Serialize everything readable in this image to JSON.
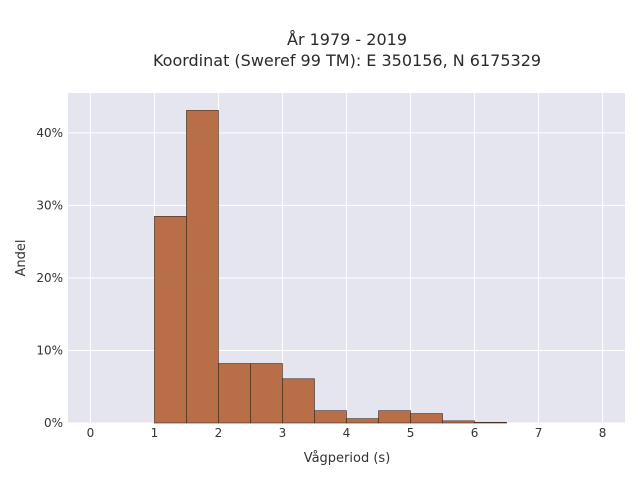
{
  "chart_data": {
    "type": "bar",
    "title_line1": "År 1979 - 2019",
    "title_line2": "Koordinat (Sweref 99 TM): E 350156, N 6175329",
    "xlabel": "Vågperiod (s)",
    "ylabel": "Andel",
    "xlim": [
      -0.35,
      8.35
    ],
    "ylim": [
      0,
      45.5
    ],
    "xticks": [
      0,
      1,
      2,
      3,
      4,
      5,
      6,
      7,
      8
    ],
    "xtick_labels": [
      "0",
      "1",
      "2",
      "3",
      "4",
      "5",
      "6",
      "7",
      "8"
    ],
    "yticks": [
      0,
      10,
      20,
      30,
      40
    ],
    "ytick_labels": [
      "0%",
      "10%",
      "20%",
      "30%",
      "40%"
    ],
    "bin_width": 0.5,
    "bins": [
      {
        "start": 1.0,
        "end": 1.5,
        "value": 28.5
      },
      {
        "start": 1.5,
        "end": 2.0,
        "value": 43.1
      },
      {
        "start": 2.0,
        "end": 2.5,
        "value": 8.2
      },
      {
        "start": 2.5,
        "end": 3.0,
        "value": 8.2
      },
      {
        "start": 3.0,
        "end": 3.5,
        "value": 6.1
      },
      {
        "start": 3.5,
        "end": 4.0,
        "value": 1.7
      },
      {
        "start": 4.0,
        "end": 4.5,
        "value": 0.6
      },
      {
        "start": 4.5,
        "end": 5.0,
        "value": 1.7
      },
      {
        "start": 5.0,
        "end": 5.5,
        "value": 1.3
      },
      {
        "start": 5.5,
        "end": 6.0,
        "value": 0.3
      },
      {
        "start": 6.0,
        "end": 6.5,
        "value": 0.1
      }
    ],
    "grid": true,
    "colors": {
      "bar_fill": "#b5683e",
      "bar_stroke": "#3a2a20",
      "plot_bg": "#e5e5f0",
      "grid": "#ffffff"
    }
  }
}
